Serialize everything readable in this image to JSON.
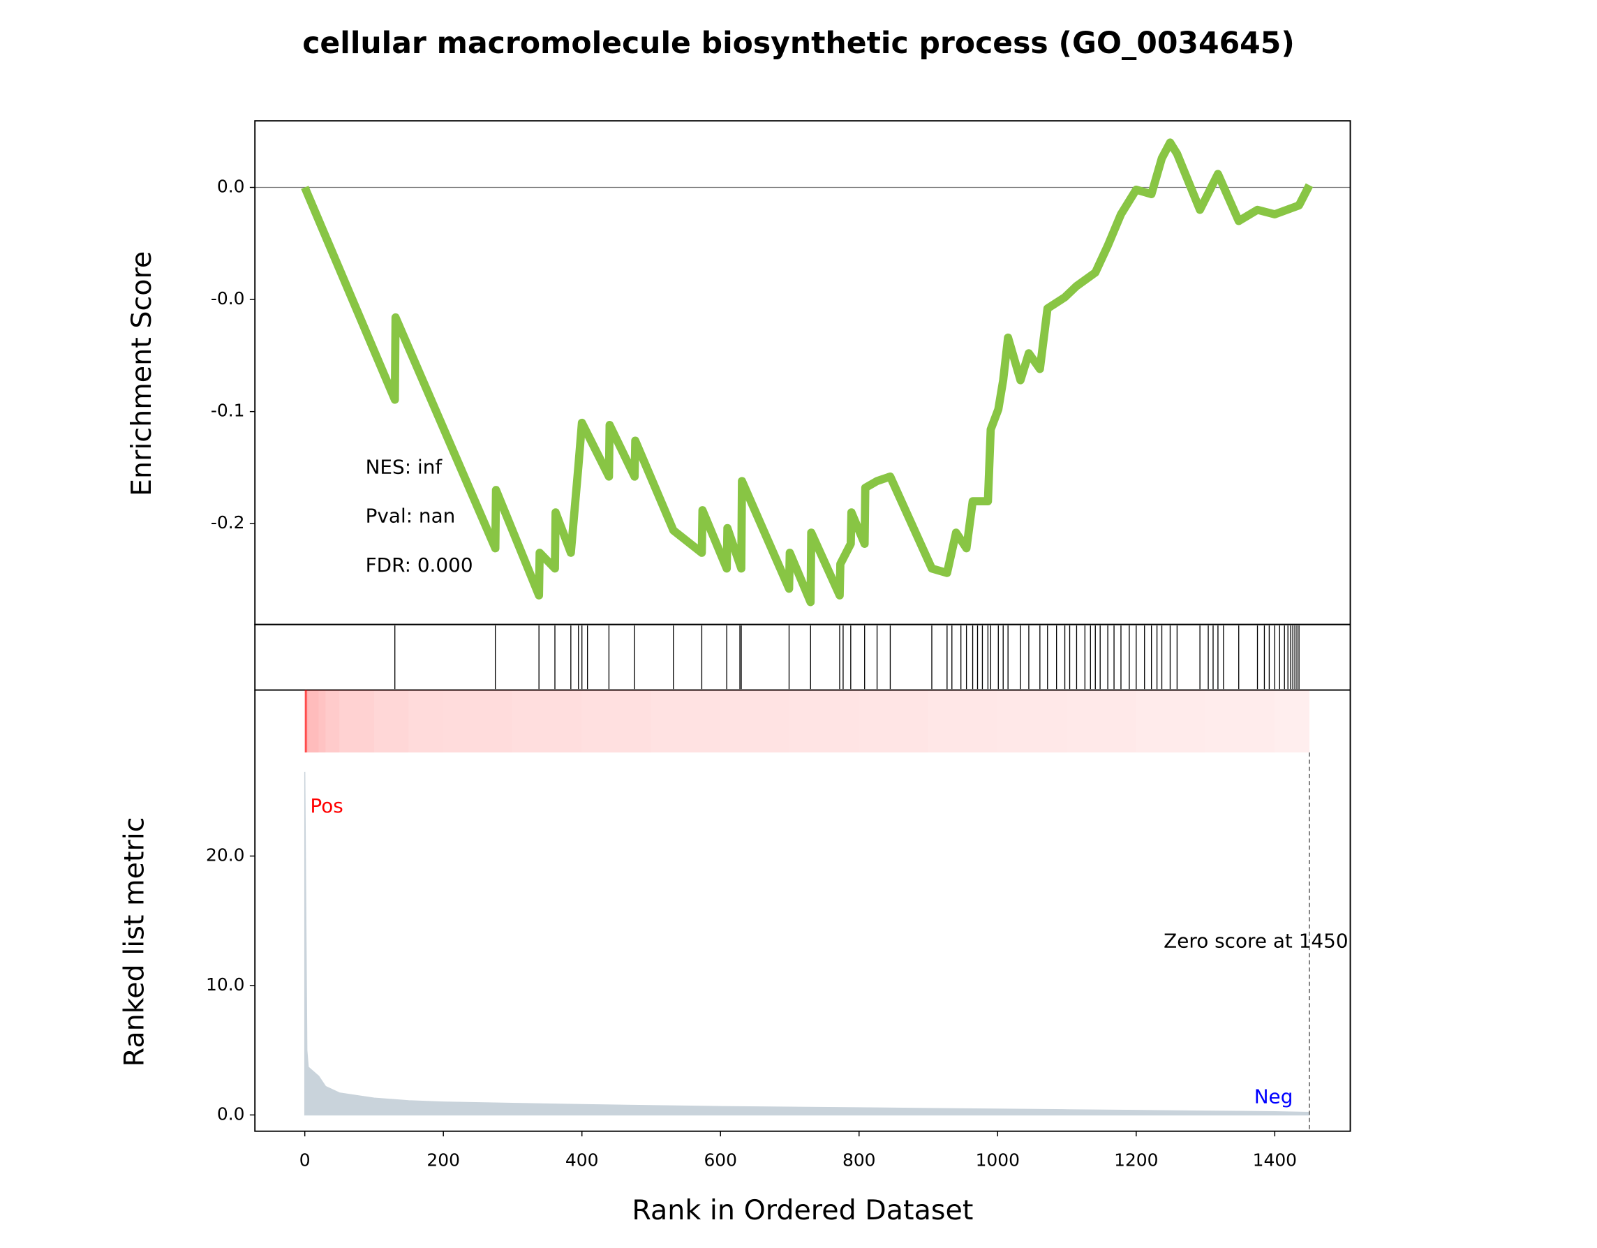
{
  "chart_data": [
    {
      "type": "line",
      "title": "cellular macromolecule biosynthetic process (GO_0034645)",
      "ylabel": "Enrichment Score",
      "annotations": [
        "NES: inf",
        "Pval: nan",
        "FDR: 0.000"
      ],
      "xlim": [
        -72,
        1509
      ],
      "ylim": [
        -0.195,
        0.0297
      ],
      "yticks": [
        {
          "value": 0,
          "label": "0.0"
        },
        {
          "value": -0.05,
          "label": "-0.0"
        },
        {
          "value": -0.1,
          "label": "-0.1"
        },
        {
          "value": -0.15,
          "label": "-0.2"
        }
      ],
      "series": [
        {
          "color": "#88c544",
          "x": [
            0,
            130,
            131,
            275,
            276,
            338,
            339,
            361,
            362,
            384,
            395,
            400,
            439,
            440,
            476,
            477,
            532,
            573,
            574,
            609,
            610,
            630,
            631,
            699,
            700,
            730,
            731,
            772,
            773,
            788,
            789,
            808,
            809,
            826,
            845,
            905,
            927,
            940,
            955,
            964,
            986,
            990,
            1001,
            1008,
            1015,
            1033,
            1045,
            1061,
            1072,
            1097,
            1114,
            1141,
            1159,
            1178,
            1200,
            1222,
            1237,
            1249,
            1259,
            1292,
            1318,
            1348,
            1375,
            1400,
            1435,
            1450
          ],
          "values": [
            0,
            -0.0947,
            -0.058,
            -0.161,
            -0.135,
            -0.182,
            -0.163,
            -0.17,
            -0.145,
            -0.163,
            -0.124,
            -0.105,
            -0.129,
            -0.106,
            -0.129,
            -0.113,
            -0.153,
            -0.163,
            -0.144,
            -0.17,
            -0.152,
            -0.17,
            -0.131,
            -0.179,
            -0.163,
            -0.185,
            -0.154,
            -0.182,
            -0.168,
            -0.159,
            -0.145,
            -0.159,
            -0.134,
            -0.131,
            -0.129,
            -0.17,
            -0.172,
            -0.154,
            -0.161,
            -0.14,
            -0.14,
            -0.108,
            -0.099,
            -0.086,
            -0.067,
            -0.086,
            -0.074,
            -0.081,
            -0.054,
            -0.049,
            -0.044,
            -0.038,
            -0.026,
            -0.012,
            -0.001,
            -0.003,
            0.013,
            0.02,
            0.015,
            -0.01,
            0.006,
            -0.015,
            -0.01,
            -0.012,
            -0.008,
            0.001
          ]
        }
      ],
      "hits": [
        130,
        275,
        338,
        361,
        384,
        395,
        400,
        408,
        439,
        476,
        532,
        573,
        609,
        628,
        630,
        699,
        730,
        772,
        777,
        788,
        808,
        826,
        845,
        905,
        927,
        934,
        947,
        955,
        964,
        971,
        978,
        986,
        990,
        1001,
        1008,
        1015,
        1033,
        1045,
        1061,
        1072,
        1085,
        1097,
        1104,
        1114,
        1126,
        1134,
        1141,
        1148,
        1159,
        1168,
        1178,
        1190,
        1200,
        1212,
        1222,
        1230,
        1237,
        1249,
        1259,
        1292,
        1304,
        1311,
        1318,
        1326,
        1348,
        1375,
        1385,
        1392,
        1400,
        1407,
        1414,
        1419,
        1423,
        1426,
        1429,
        1432,
        1435
      ]
    },
    {
      "type": "area",
      "ylabel": "Ranked list metric",
      "xlabel": "Rank in Ordered Dataset",
      "pos_label": "Pos",
      "neg_label": "Neg",
      "zero_score": 1450,
      "zero_score_label": "Zero score at 1450",
      "xlim": [
        -72,
        1509
      ],
      "xticks": [
        0,
        200,
        400,
        600,
        800,
        1000,
        1200,
        1400
      ],
      "ylim": [
        -1.26,
        28.0
      ],
      "yticks": [
        {
          "value": 0,
          "label": "0.0"
        },
        {
          "value": 10,
          "label": "10.0"
        },
        {
          "value": 20,
          "label": "20.0"
        }
      ],
      "series": [
        {
          "color": "#c9d3db",
          "x": [
            0,
            3,
            5,
            20,
            30,
            50,
            100,
            150,
            200,
            300,
            400,
            500,
            600,
            700,
            800,
            900,
            1000,
            1100,
            1200,
            1300,
            1400,
            1450
          ],
          "values": [
            26.5,
            5,
            3.7,
            3.0,
            2.2,
            1.7,
            1.3,
            1.1,
            1.0,
            0.9,
            0.8,
            0.72,
            0.65,
            0.6,
            0.55,
            0.5,
            0.45,
            0.4,
            0.35,
            0.3,
            0.25,
            0.2
          ]
        }
      ]
    }
  ]
}
